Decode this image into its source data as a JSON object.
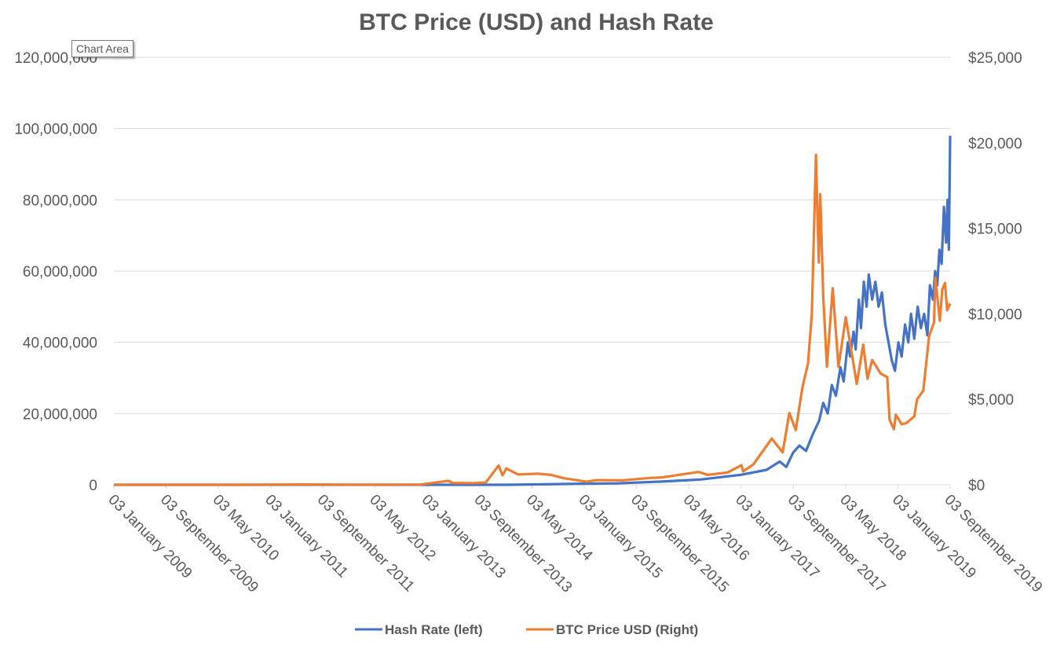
{
  "tooltip": "Chart Area",
  "chart_data": {
    "type": "line",
    "title": "BTC Price (USD) and Hash  Rate",
    "grid": true,
    "legend_position": "bottom",
    "x_range": [
      "2009-01-03",
      "2019-09-03"
    ],
    "x_ticks": [
      "03 January 2009",
      "03 September 2009",
      "03 May 2010",
      "03 January 2011",
      "03 September 2011",
      "03 May 2012",
      "03 January 2013",
      "03 September 2013",
      "03 May 2014",
      "03 January 2015",
      "03 September 2015",
      "03 May 2016",
      "03 January 2017",
      "03 September 2017",
      "03 May 2018",
      "03 January 2019",
      "03 September 2019"
    ],
    "y_left": {
      "range": [
        0,
        120000000
      ],
      "ticks": [
        "0",
        "20,000,000",
        "40,000,000",
        "60,000,000",
        "80,000,000",
        "100,000,000",
        "120,000,000"
      ]
    },
    "y_right": {
      "range": [
        0,
        25000
      ],
      "ticks": [
        "$0",
        "$5,000",
        "$10,000",
        "$15,000",
        "$20,000",
        "$25,000"
      ]
    },
    "series": [
      {
        "name": "Hash Rate (left)",
        "axis": "left",
        "color": "#4472C4",
        "points": [
          [
            "2009-01-03",
            0
          ],
          [
            "2012-01-01",
            10
          ],
          [
            "2013-01-01",
            25
          ],
          [
            "2013-09-01",
            1000
          ],
          [
            "2014-01-01",
            10000
          ],
          [
            "2014-06-01",
            100000
          ],
          [
            "2015-01-01",
            300000
          ],
          [
            "2015-06-01",
            400000
          ],
          [
            "2016-01-01",
            900000
          ],
          [
            "2016-07-01",
            1500000
          ],
          [
            "2017-01-01",
            2800000
          ],
          [
            "2017-05-01",
            4200000
          ],
          [
            "2017-07-01",
            6500000
          ],
          [
            "2017-08-01",
            5000000
          ],
          [
            "2017-09-01",
            9000000
          ],
          [
            "2017-10-01",
            11000000
          ],
          [
            "2017-11-01",
            9500000
          ],
          [
            "2017-12-01",
            14000000
          ],
          [
            "2018-01-01",
            18000000
          ],
          [
            "2018-01-20",
            23000000
          ],
          [
            "2018-02-10",
            20000000
          ],
          [
            "2018-03-01",
            28000000
          ],
          [
            "2018-03-20",
            25000000
          ],
          [
            "2018-04-10",
            33000000
          ],
          [
            "2018-04-25",
            29000000
          ],
          [
            "2018-05-15",
            40000000
          ],
          [
            "2018-05-25",
            36000000
          ],
          [
            "2018-06-10",
            43000000
          ],
          [
            "2018-06-20",
            38000000
          ],
          [
            "2018-07-05",
            52000000
          ],
          [
            "2018-07-15",
            44000000
          ],
          [
            "2018-07-28",
            57000000
          ],
          [
            "2018-08-10",
            50000000
          ],
          [
            "2018-08-20",
            59000000
          ],
          [
            "2018-09-05",
            52000000
          ],
          [
            "2018-09-20",
            57000000
          ],
          [
            "2018-10-05",
            50000000
          ],
          [
            "2018-10-20",
            54000000
          ],
          [
            "2018-11-05",
            45000000
          ],
          [
            "2018-11-20",
            40000000
          ],
          [
            "2018-12-05",
            35000000
          ],
          [
            "2018-12-20",
            32000000
          ],
          [
            "2019-01-05",
            40000000
          ],
          [
            "2019-01-20",
            36000000
          ],
          [
            "2019-02-05",
            45000000
          ],
          [
            "2019-02-20",
            40000000
          ],
          [
            "2019-03-05",
            48000000
          ],
          [
            "2019-03-20",
            41000000
          ],
          [
            "2019-04-05",
            50000000
          ],
          [
            "2019-04-20",
            44000000
          ],
          [
            "2019-05-05",
            48000000
          ],
          [
            "2019-05-20",
            42000000
          ],
          [
            "2019-06-01",
            56000000
          ],
          [
            "2019-06-15",
            52000000
          ],
          [
            "2019-06-25",
            60000000
          ],
          [
            "2019-07-05",
            56000000
          ],
          [
            "2019-07-15",
            66000000
          ],
          [
            "2019-07-25",
            62000000
          ],
          [
            "2019-08-05",
            78000000
          ],
          [
            "2019-08-15",
            68000000
          ],
          [
            "2019-08-22",
            80000000
          ],
          [
            "2019-08-28",
            66000000
          ],
          [
            "2019-09-03",
            98000000
          ]
        ]
      },
      {
        "name": "BTC Price USD  (Right)",
        "axis": "right",
        "color": "#ED7D31",
        "points": [
          [
            "2009-01-03",
            0
          ],
          [
            "2010-07-15",
            0.08
          ],
          [
            "2011-06-08",
            20
          ],
          [
            "2011-12-01",
            3
          ],
          [
            "2012-06-01",
            6
          ],
          [
            "2012-12-01",
            13
          ],
          [
            "2013-04-10",
            230
          ],
          [
            "2013-05-01",
            110
          ],
          [
            "2013-08-01",
            100
          ],
          [
            "2013-10-01",
            130
          ],
          [
            "2013-11-30",
            1130
          ],
          [
            "2013-12-18",
            550
          ],
          [
            "2014-01-05",
            950
          ],
          [
            "2014-03-01",
            600
          ],
          [
            "2014-06-01",
            650
          ],
          [
            "2014-08-01",
            580
          ],
          [
            "2014-10-01",
            380
          ],
          [
            "2015-01-14",
            180
          ],
          [
            "2015-03-01",
            270
          ],
          [
            "2015-07-01",
            260
          ],
          [
            "2015-11-04",
            400
          ],
          [
            "2016-01-01",
            430
          ],
          [
            "2016-06-17",
            750
          ],
          [
            "2016-08-01",
            580
          ],
          [
            "2016-11-01",
            720
          ],
          [
            "2017-01-04",
            1150
          ],
          [
            "2017-01-12",
            780
          ],
          [
            "2017-03-01",
            1200
          ],
          [
            "2017-05-25",
            2700
          ],
          [
            "2017-07-15",
            1900
          ],
          [
            "2017-08-15",
            4200
          ],
          [
            "2017-09-14",
            3200
          ],
          [
            "2017-10-15",
            5700
          ],
          [
            "2017-11-10",
            7100
          ],
          [
            "2017-11-28",
            10000
          ],
          [
            "2017-12-17",
            19300
          ],
          [
            "2017-12-30",
            13000
          ],
          [
            "2018-01-06",
            17000
          ],
          [
            "2018-01-20",
            11000
          ],
          [
            "2018-02-06",
            6900
          ],
          [
            "2018-03-05",
            11500
          ],
          [
            "2018-04-01",
            6900
          ],
          [
            "2018-05-05",
            9800
          ],
          [
            "2018-06-25",
            5900
          ],
          [
            "2018-07-25",
            8200
          ],
          [
            "2018-08-14",
            6200
          ],
          [
            "2018-09-05",
            7300
          ],
          [
            "2018-10-15",
            6500
          ],
          [
            "2018-11-14",
            6300
          ],
          [
            "2018-11-25",
            3800
          ],
          [
            "2018-12-15",
            3250
          ],
          [
            "2018-12-24",
            4100
          ],
          [
            "2019-01-20",
            3550
          ],
          [
            "2019-02-10",
            3600
          ],
          [
            "2019-03-20",
            4000
          ],
          [
            "2019-04-02",
            5000
          ],
          [
            "2019-05-01",
            5500
          ],
          [
            "2019-05-28",
            8700
          ],
          [
            "2019-06-20",
            9500
          ],
          [
            "2019-06-26",
            12100
          ],
          [
            "2019-07-17",
            9600
          ],
          [
            "2019-07-28",
            11400
          ],
          [
            "2019-08-10",
            11800
          ],
          [
            "2019-08-20",
            10200
          ],
          [
            "2019-09-03",
            10600
          ]
        ]
      }
    ]
  }
}
